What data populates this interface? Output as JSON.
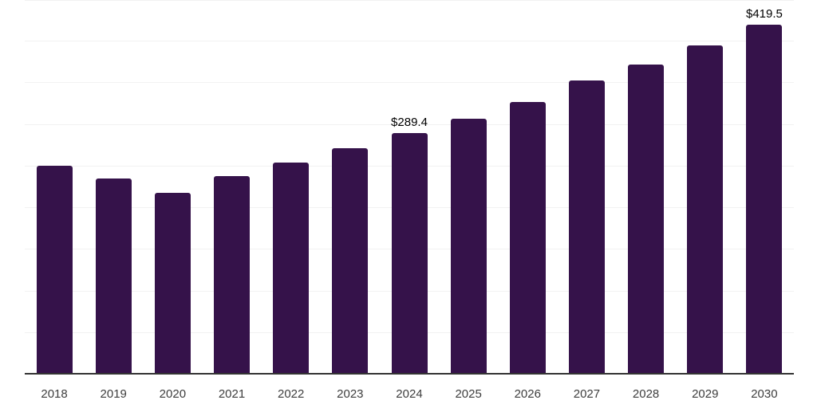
{
  "chart_data": {
    "type": "bar",
    "title": "",
    "xlabel": "",
    "ylabel": "",
    "categories": [
      "2018",
      "2019",
      "2020",
      "2021",
      "2022",
      "2023",
      "2024",
      "2025",
      "2026",
      "2027",
      "2028",
      "2029",
      "2030"
    ],
    "values": [
      249.7,
      235.0,
      217.8,
      237.6,
      253.5,
      271.3,
      289.4,
      306.7,
      326.2,
      352.3,
      371.7,
      394.1,
      419.5
    ],
    "data_labels": {
      "2024": "$289.4",
      "2030": "$419.5"
    },
    "ylim": [
      0,
      450
    ],
    "gridline_step": 50,
    "grid": "horizontal-only",
    "legend": "none",
    "colors": {
      "bar": "#35124A",
      "gridline": "#f2f2f2",
      "axis_line": "#333333",
      "tick_label": "#3d3d3d",
      "data_label": "#000000",
      "background": "#ffffff"
    }
  }
}
